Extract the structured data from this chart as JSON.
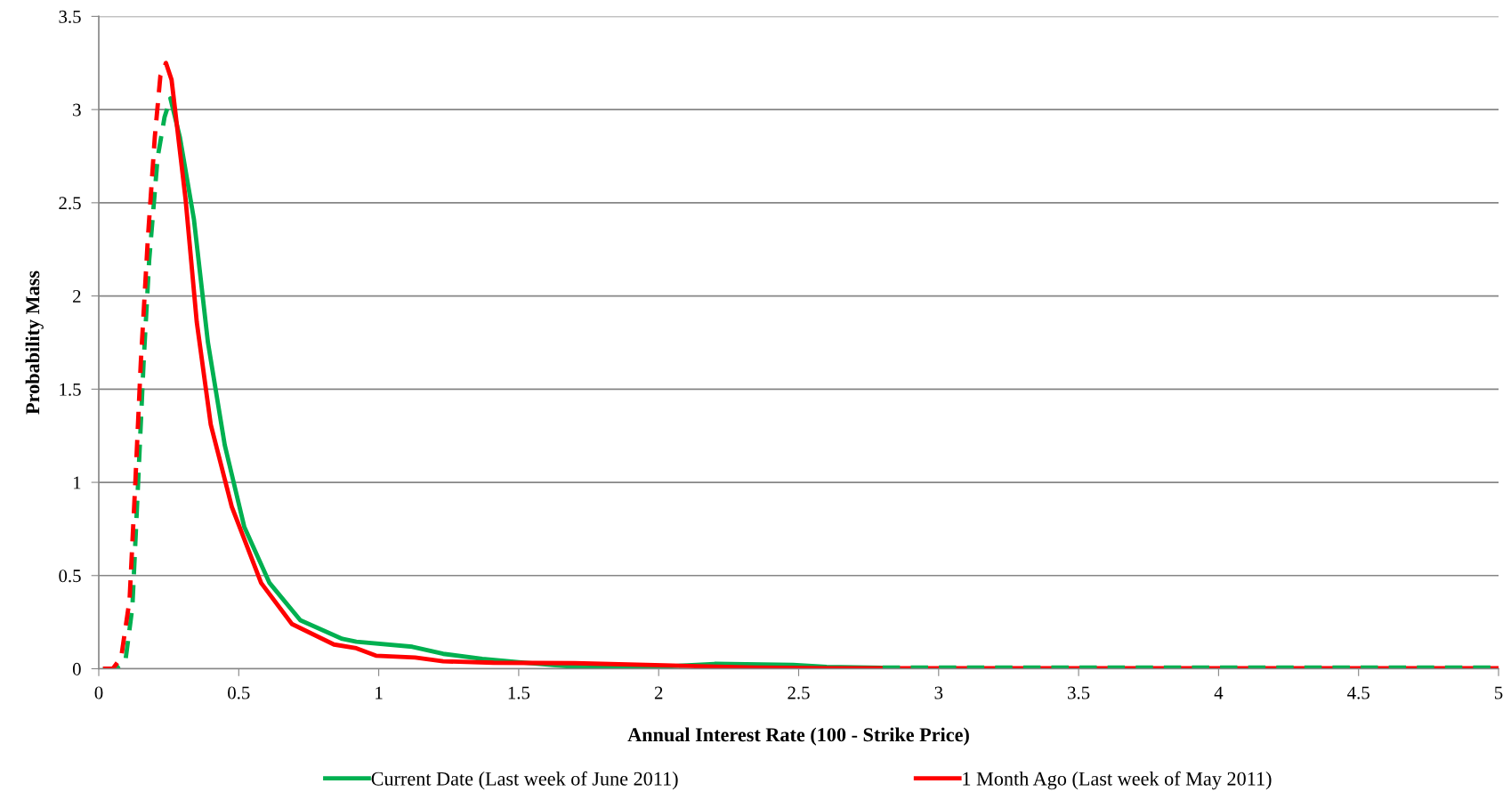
{
  "chart_data": {
    "type": "line",
    "xlabel": "Annual Interest Rate (100 - Strike Price)",
    "ylabel": "Probability Mass",
    "xlim": [
      0,
      5
    ],
    "xticks": [
      0,
      0.5,
      1,
      1.5,
      2,
      2.5,
      3,
      3.5,
      4,
      4.5,
      5
    ],
    "ylim": [
      0,
      3.5
    ],
    "yticks": [
      0,
      0.5,
      1,
      1.5,
      2,
      2.5,
      3,
      3.5
    ],
    "grid": "y",
    "legend": "bottom",
    "marker": "none",
    "series": [
      {
        "color": "#00b050",
        "line_style": "dashed",
        "x": [
          0.015,
          0.06,
          0.095,
          0.12,
          0.14,
          0.16,
          0.18,
          0.21,
          0.235,
          0.256
        ],
        "values": [
          0,
          0,
          0.04,
          0.33,
          0.98,
          1.64,
          2.19,
          2.74,
          2.96,
          3.06
        ]
      },
      {
        "name": "Current Date (Last week of June 2011)",
        "color": "#00b050",
        "line_style": "solid",
        "x": [
          0.256,
          0.29,
          0.34,
          0.39,
          0.45,
          0.52,
          0.61,
          0.72,
          0.87,
          0.92,
          1.12,
          1.23,
          1.37,
          1.5,
          1.7,
          2.0,
          2.2,
          2.48,
          2.6,
          2.8
        ],
        "values": [
          3.06,
          2.85,
          2.41,
          1.75,
          1.2,
          0.76,
          0.46,
          0.26,
          0.16,
          0.145,
          0.118,
          0.08,
          0.053,
          0.035,
          0.01,
          0.01,
          0.026,
          0.021,
          0.01,
          0.005
        ]
      },
      {
        "color": "#ff0000",
        "line_style": "dashed",
        "x": [
          0.015,
          0.05,
          0.08,
          0.11,
          0.13,
          0.15,
          0.175,
          0.2,
          0.22,
          0.24
        ],
        "values": [
          0,
          0,
          0.06,
          0.37,
          0.98,
          1.64,
          2.3,
          2.85,
          3.18,
          3.25
        ]
      },
      {
        "name": "1 Month Ago (Last week of May 2011)",
        "color": "#ff0000",
        "line_style": "solid",
        "x": [
          0.24,
          0.26,
          0.31,
          0.35,
          0.4,
          0.475,
          0.58,
          0.69,
          0.84,
          0.92,
          0.99,
          1.13,
          1.23,
          1.41,
          1.7,
          2.05,
          2.34,
          2.6,
          3.0,
          4.0,
          5.0
        ],
        "values": [
          3.25,
          3.16,
          2.52,
          1.86,
          1.31,
          0.87,
          0.46,
          0.24,
          0.13,
          0.11,
          0.07,
          0.06,
          0.04,
          0.032,
          0.03,
          0.017,
          0.006,
          0.003,
          0.003,
          0.003,
          0.003
        ]
      },
      {
        "color": "#00b050",
        "line_style": "dashed",
        "x": [
          2.8,
          2.9,
          3.0,
          4.0,
          5.0
        ],
        "values": [
          0.006,
          0.006,
          0.006,
          0.006,
          0.006
        ]
      }
    ]
  }
}
